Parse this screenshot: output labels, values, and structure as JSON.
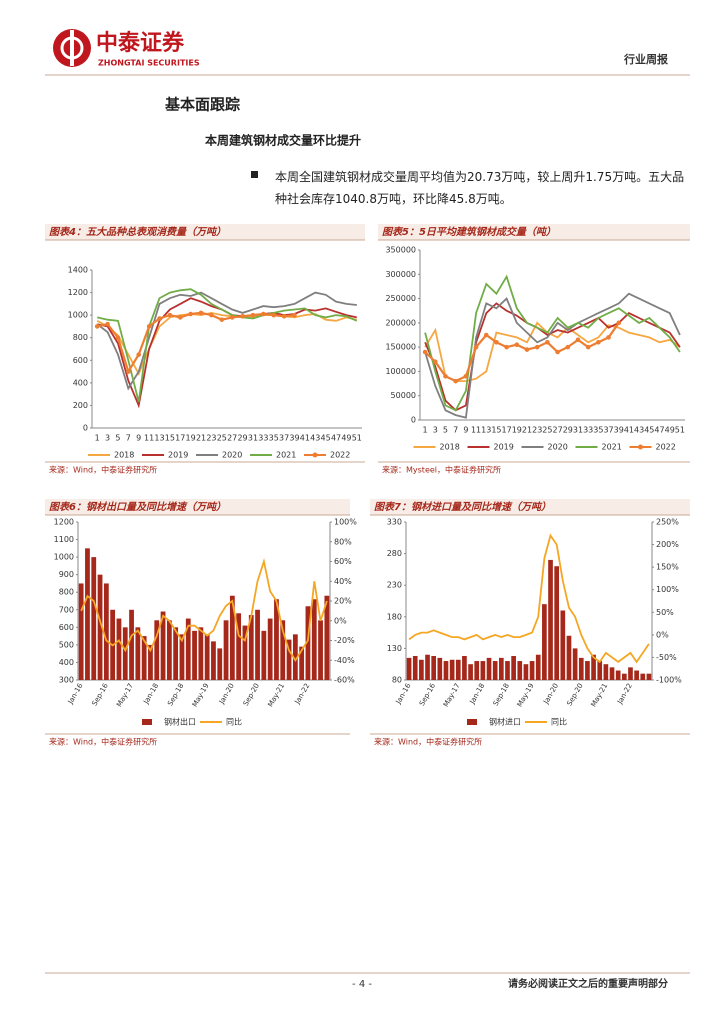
{
  "header": {
    "company": "中泰证券",
    "company_en": "ZHONGTAI SECURITIES",
    "report_type": "行业周报"
  },
  "section_title": "基本面跟踪",
  "subsection_title": "本周建筑钢材成交量环比提升",
  "bullet": "本周全国建筑钢材成交量周平均值为20.73万吨，较上周升1.75万吨。五大品种社会库存1040.8万吨，环比降45.8万吨。",
  "chart_data": [
    {
      "type": "line",
      "title": "图表4：五大品种总表观消费量（万吨）",
      "source": "来源：Wind，中泰证券研究所",
      "categories": [
        "1",
        "3",
        "5",
        "7",
        "9",
        "11",
        "13",
        "15",
        "17",
        "19",
        "21",
        "23",
        "25",
        "27",
        "29",
        "31",
        "33",
        "35",
        "37",
        "39",
        "41",
        "43",
        "45",
        "47",
        "49",
        "51"
      ],
      "ylim": [
        0,
        1400
      ],
      "yticks": [
        0,
        200,
        400,
        600,
        800,
        1000,
        1200,
        1400
      ],
      "series": [
        {
          "name": "2018",
          "color": "#f5a742",
          "values": [
            950,
            900,
            820,
            650,
            480,
            700,
            900,
            980,
            1000,
            1010,
            1000,
            1020,
            1000,
            990,
            980,
            990,
            1000,
            1000,
            990,
            980,
            1000,
            1010,
            960,
            950,
            980,
            960
          ]
        },
        {
          "name": "2019",
          "color": "#b8312f",
          "values": [
            920,
            900,
            750,
            420,
            200,
            700,
            950,
            1050,
            1100,
            1150,
            1120,
            1080,
            1050,
            1000,
            990,
            1000,
            1010,
            1020,
            1000,
            1010,
            1050,
            1040,
            1060,
            1030,
            1000,
            980
          ]
        },
        {
          "name": "2020",
          "color": "#7f7f7f",
          "values": [
            920,
            850,
            650,
            350,
            500,
            800,
            1100,
            1150,
            1180,
            1170,
            1200,
            1150,
            1100,
            1050,
            1020,
            1050,
            1080,
            1070,
            1080,
            1100,
            1150,
            1200,
            1180,
            1120,
            1100,
            1090
          ]
        },
        {
          "name": "2021",
          "color": "#70ad47",
          "values": [
            980,
            960,
            950,
            600,
            230,
            900,
            1150,
            1200,
            1220,
            1230,
            1180,
            1100,
            1050,
            1000,
            980,
            970,
            1000,
            1020,
            1040,
            1050,
            1060,
            1000,
            980,
            1000,
            990,
            950
          ]
        },
        {
          "name": "2022",
          "color": "#ed7d31",
          "marker": true,
          "values": [
            900,
            920,
            800,
            500,
            650,
            900,
            970,
            1000,
            980,
            1010,
            1020,
            1000,
            960,
            980,
            990,
            1000,
            1010,
            1000,
            990,
            1000,
            null,
            null,
            null,
            null,
            null,
            null
          ]
        }
      ]
    },
    {
      "type": "line",
      "title": "图表5：5日平均建筑钢材成交量（吨）",
      "source": "来源：Mysteel，中泰证券研究所",
      "categories": [
        "1",
        "3",
        "5",
        "7",
        "9",
        "11",
        "13",
        "15",
        "17",
        "19",
        "21",
        "23",
        "25",
        "27",
        "29",
        "31",
        "33",
        "35",
        "37",
        "39",
        "41",
        "43",
        "45",
        "47",
        "49",
        "51"
      ],
      "ylim": [
        0,
        350000
      ],
      "yticks": [
        0,
        50000,
        100000,
        150000,
        200000,
        250000,
        300000,
        350000
      ],
      "series": [
        {
          "name": "2018",
          "color": "#f5a742",
          "values": [
            150000,
            185000,
            90000,
            80000,
            80000,
            85000,
            100000,
            180000,
            175000,
            170000,
            160000,
            200000,
            180000,
            170000,
            190000,
            175000,
            160000,
            170000,
            195000,
            190000,
            180000,
            175000,
            170000,
            160000,
            165000,
            150000
          ]
        },
        {
          "name": "2019",
          "color": "#b8312f",
          "values": [
            160000,
            110000,
            40000,
            20000,
            30000,
            160000,
            220000,
            240000,
            225000,
            215000,
            200000,
            190000,
            175000,
            185000,
            180000,
            190000,
            200000,
            210000,
            190000,
            200000,
            220000,
            210000,
            200000,
            190000,
            180000,
            150000
          ]
        },
        {
          "name": "2020",
          "color": "#7f7f7f",
          "values": [
            140000,
            70000,
            20000,
            10000,
            5000,
            170000,
            240000,
            230000,
            250000,
            200000,
            180000,
            160000,
            170000,
            200000,
            185000,
            200000,
            210000,
            220000,
            230000,
            240000,
            260000,
            250000,
            240000,
            230000,
            220000,
            175000
          ]
        },
        {
          "name": "2021",
          "color": "#70ad47",
          "values": [
            180000,
            100000,
            30000,
            20000,
            60000,
            220000,
            280000,
            260000,
            295000,
            230000,
            200000,
            190000,
            180000,
            210000,
            190000,
            200000,
            190000,
            210000,
            220000,
            230000,
            215000,
            200000,
            210000,
            190000,
            170000,
            140000
          ]
        },
        {
          "name": "2022",
          "color": "#ed7d31",
          "marker": true,
          "values": [
            140000,
            120000,
            90000,
            80000,
            90000,
            150000,
            175000,
            160000,
            150000,
            155000,
            145000,
            150000,
            160000,
            140000,
            150000,
            165000,
            150000,
            160000,
            170000,
            200000,
            null,
            null,
            null,
            null,
            null,
            null
          ]
        }
      ]
    },
    {
      "type": "bar_line",
      "title": "图表6：钢材出口量及同比增速（万吨）",
      "source": "来源：Wind，中泰证券研究所",
      "categories": [
        "Jan-16",
        null,
        null,
        null,
        "Sep-16",
        null,
        null,
        null,
        "May-17",
        null,
        null,
        null,
        "Jan-18",
        null,
        null,
        null,
        "Sep-18",
        null,
        null,
        null,
        "May-19",
        null,
        null,
        null,
        "Jan-20",
        null,
        null,
        null,
        "Sep-20",
        null,
        null,
        null,
        "May-21",
        null,
        null,
        null,
        "Jan-22",
        null,
        null,
        null
      ],
      "ylim": [
        300,
        1200
      ],
      "yticks": [
        300,
        400,
        500,
        600,
        700,
        800,
        900,
        1000,
        1100,
        1200
      ],
      "y2lim": [
        -60,
        100
      ],
      "y2ticks": [
        {
          "value": -60,
          "label": "-60%"
        },
        {
          "value": -40,
          "label": "-40%"
        },
        {
          "value": -20,
          "label": "-20%"
        },
        {
          "value": 0,
          "label": "0%"
        },
        {
          "value": 20,
          "label": "20%"
        },
        {
          "value": 40,
          "label": "40%"
        },
        {
          "value": 60,
          "label": "60%"
        },
        {
          "value": 80,
          "label": "80%"
        },
        {
          "value": 100,
          "label": "100%"
        }
      ],
      "series": [
        {
          "name": "钢材出口",
          "color": "#a5281b",
          "values": [
            850,
            1050,
            1000,
            900,
            850,
            700,
            650,
            600,
            700,
            600,
            550,
            500,
            640,
            690,
            640,
            600,
            560,
            650,
            580,
            600,
            560,
            520,
            480,
            640,
            780,
            680,
            610,
            670,
            700,
            580,
            650,
            760,
            640,
            530,
            560,
            490,
            720,
            760,
            640,
            780
          ]
        },
        {
          "name": "同比",
          "color": "#f5a623",
          "axis": "y2",
          "values": [
            10,
            25,
            20,
            0,
            -20,
            -25,
            -20,
            -30,
            -15,
            -10,
            -20,
            -30,
            -15,
            5,
            0,
            -10,
            -20,
            -5,
            -5,
            -10,
            -15,
            -10,
            5,
            15,
            20,
            -15,
            -20,
            5,
            40,
            60,
            30,
            20,
            -10,
            -30,
            -40,
            -30,
            -20,
            40,
            0,
            20
          ]
        }
      ]
    },
    {
      "type": "bar_line",
      "title": "图表7：钢材进口量及同比增速（万吨）",
      "source": "来源：Wind，中泰证券研究所",
      "categories": [
        "Jan-16",
        null,
        null,
        null,
        "Sep-16",
        null,
        null,
        null,
        "May-17",
        null,
        null,
        null,
        "Jan-18",
        null,
        null,
        null,
        "Sep-18",
        null,
        null,
        null,
        "May-19",
        null,
        null,
        null,
        "Jan-20",
        null,
        null,
        null,
        "Sep-20",
        null,
        null,
        null,
        "May-21",
        null,
        null,
        null,
        "Jan-22",
        null,
        null,
        null
      ],
      "ylim": [
        80,
        330
      ],
      "yticks": [
        80,
        130,
        180,
        230,
        280,
        330
      ],
      "y2lim": [
        -100,
        250
      ],
      "y2ticks": [
        {
          "value": -100,
          "label": "-100%"
        },
        {
          "value": -50,
          "label": "-50%"
        },
        {
          "value": 0,
          "label": "0%"
        },
        {
          "value": 50,
          "label": "50%"
        },
        {
          "value": 100,
          "label": "100%"
        },
        {
          "value": 150,
          "label": "150%"
        },
        {
          "value": 200,
          "label": "200%"
        },
        {
          "value": 250,
          "label": "250%"
        }
      ],
      "series": [
        {
          "name": "钢材进口",
          "color": "#a5281b",
          "values": [
            115,
            118,
            112,
            120,
            118,
            115,
            110,
            112,
            112,
            118,
            105,
            110,
            110,
            115,
            110,
            115,
            110,
            118,
            110,
            105,
            110,
            120,
            200,
            270,
            260,
            190,
            150,
            130,
            115,
            110,
            120,
            110,
            105,
            100,
            95,
            90,
            100,
            95,
            90,
            90
          ]
        },
        {
          "name": "同比",
          "color": "#f5a623",
          "axis": "y2",
          "values": [
            -10,
            0,
            5,
            5,
            10,
            5,
            0,
            -5,
            -5,
            -10,
            -5,
            0,
            -10,
            -5,
            0,
            -5,
            0,
            -5,
            -5,
            0,
            5,
            40,
            170,
            220,
            200,
            120,
            60,
            40,
            0,
            -30,
            -50,
            -60,
            -40,
            -50,
            -60,
            -50,
            -40,
            -60,
            -40,
            -20
          ]
        }
      ]
    }
  ],
  "footer": {
    "page": "- 4 -",
    "disclaimer": "请务必阅读正文之后的重要声明部分"
  }
}
